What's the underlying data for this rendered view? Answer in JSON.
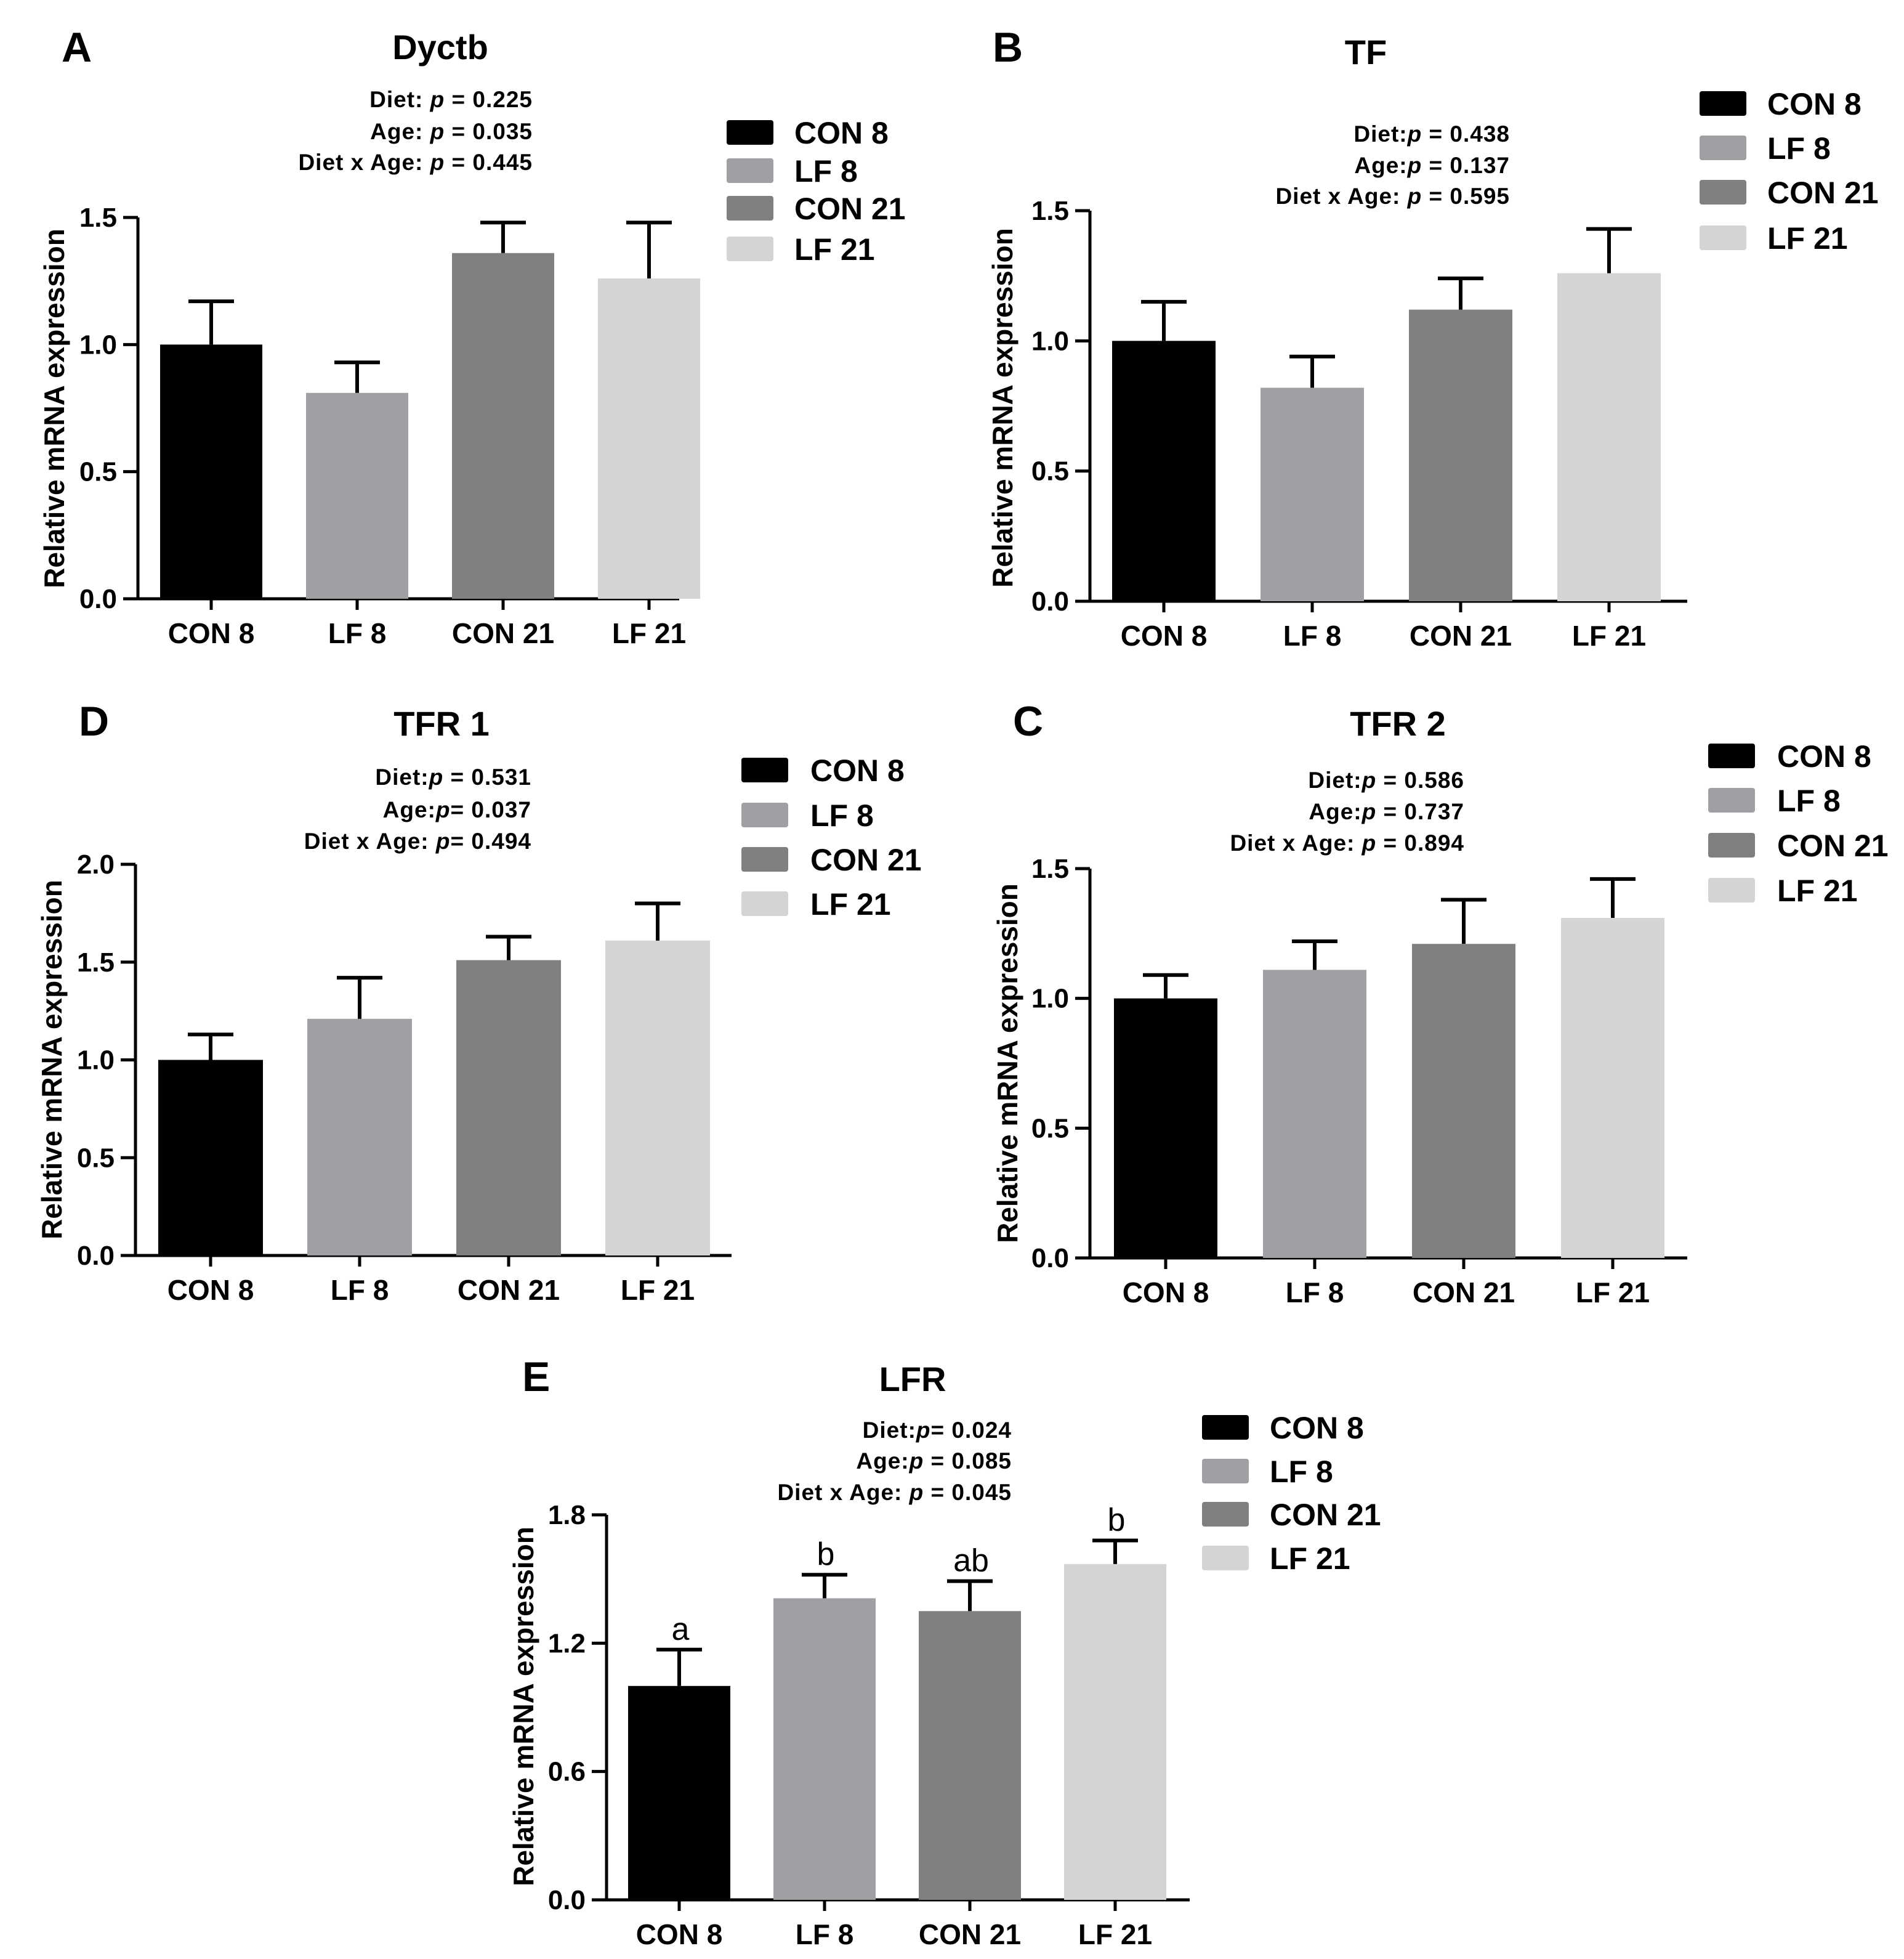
{
  "figure": {
    "background": "#ffffff"
  },
  "legend_items": [
    {
      "label": "CON 8",
      "color": "#000000"
    },
    {
      "label": "LF 8",
      "color": "#a0a0a4"
    },
    {
      "label": "CON 21",
      "color": "#808080"
    },
    {
      "label": "LF 21",
      "color": "#d4d4d4"
    }
  ],
  "chart_data": [
    {
      "panel": "A",
      "type": "bar",
      "title": "Dyctb",
      "ylabel": "Relative mRNA expression",
      "xlabel": "",
      "ylim": [
        0,
        1.5
      ],
      "yticks": [
        "0.0",
        "0.5",
        "1.0",
        "1.5"
      ],
      "categories": [
        "CON 8",
        "LF 8",
        "CON 21",
        "LF 21"
      ],
      "values": [
        1.0,
        0.81,
        1.36,
        1.26
      ],
      "errors": [
        0.17,
        0.12,
        0.12,
        0.22
      ],
      "stats": [
        {
          "prefix": "Diet: ",
          "p": "p",
          "rest": " = 0.225"
        },
        {
          "prefix": "Age: ",
          "p": "p",
          "rest": " = 0.035"
        },
        {
          "prefix": "Diet x Age:  ",
          "p": "p",
          "rest": " = 0.445"
        }
      ],
      "legend_position": "top-right"
    },
    {
      "panel": "B",
      "type": "bar",
      "title": "TF",
      "ylabel": "Relative mRNA expression",
      "xlabel": "",
      "ylim": [
        0,
        1.5
      ],
      "yticks": [
        "0.0",
        "0.5",
        "1.0",
        "1.5"
      ],
      "categories": [
        "CON 8",
        "LF 8",
        "CON 21",
        "LF 21"
      ],
      "values": [
        1.0,
        0.82,
        1.12,
        1.26
      ],
      "errors": [
        0.15,
        0.12,
        0.12,
        0.17
      ],
      "stats": [
        {
          "prefix": "Diet:",
          "p": "p",
          "rest": " = 0.438"
        },
        {
          "prefix": "Age:",
          "p": "p",
          "rest": " = 0.137"
        },
        {
          "prefix": "Diet x Age:  ",
          "p": "p",
          "rest": " = 0.595"
        }
      ],
      "legend_position": "top-right"
    },
    {
      "panel": "D",
      "type": "bar",
      "title": "TFR 1",
      "ylabel": "Relative mRNA expression",
      "xlabel": "",
      "ylim": [
        0,
        2.0
      ],
      "yticks": [
        "0.0",
        "0.5",
        "1.0",
        "1.5",
        "2.0"
      ],
      "categories": [
        "CON 8",
        "LF 8",
        "CON 21",
        "LF 21"
      ],
      "values": [
        1.0,
        1.21,
        1.51,
        1.61
      ],
      "errors": [
        0.13,
        0.21,
        0.12,
        0.19
      ],
      "stats": [
        {
          "prefix": "Diet:",
          "p": "p",
          "rest": " = 0.531"
        },
        {
          "prefix": "Age:",
          "p": "p",
          "rest": "= 0.037"
        },
        {
          "prefix": "Diet x Age:  ",
          "p": "p",
          "rest": "= 0.494"
        }
      ],
      "legend_position": "top-right"
    },
    {
      "panel": "C",
      "type": "bar",
      "title": "TFR 2",
      "ylabel": "Relative mRNA expression",
      "xlabel": "",
      "ylim": [
        0,
        1.5
      ],
      "yticks": [
        "0.0",
        "0.5",
        "1.0",
        "1.5"
      ],
      "categories": [
        "CON 8",
        "LF 8",
        "CON 21",
        "LF 21"
      ],
      "values": [
        1.0,
        1.11,
        1.21,
        1.31
      ],
      "errors": [
        0.09,
        0.11,
        0.17,
        0.15
      ],
      "stats": [
        {
          "prefix": "Diet:",
          "p": "p",
          "rest": " = 0.586"
        },
        {
          "prefix": "Age:",
          "p": "p",
          "rest": " = 0.737"
        },
        {
          "prefix": "Diet x Age:  ",
          "p": "p",
          "rest": " = 0.894"
        }
      ],
      "legend_position": "top-right"
    },
    {
      "panel": "E",
      "type": "bar",
      "title": "LFR",
      "ylabel": "Relative mRNA expression",
      "xlabel": "",
      "ylim": [
        0,
        1.8
      ],
      "yticks": [
        "0.0",
        "0.6",
        "1.2",
        "1.8"
      ],
      "categories": [
        "CON 8",
        "LF 8",
        "CON 21",
        "LF 21"
      ],
      "values": [
        1.0,
        1.41,
        1.35,
        1.57
      ],
      "errors": [
        0.17,
        0.11,
        0.14,
        0.11
      ],
      "significance": [
        "a",
        "b",
        "ab",
        "b"
      ],
      "stats": [
        {
          "prefix": "Diet:",
          "p": "p",
          "rest": "= 0.024"
        },
        {
          "prefix": "Age:",
          "p": "p",
          "rest": " = 0.085"
        },
        {
          "prefix": "Diet x Age:  ",
          "p": "p",
          "rest": " = 0.045"
        }
      ],
      "legend_position": "top-right"
    }
  ]
}
